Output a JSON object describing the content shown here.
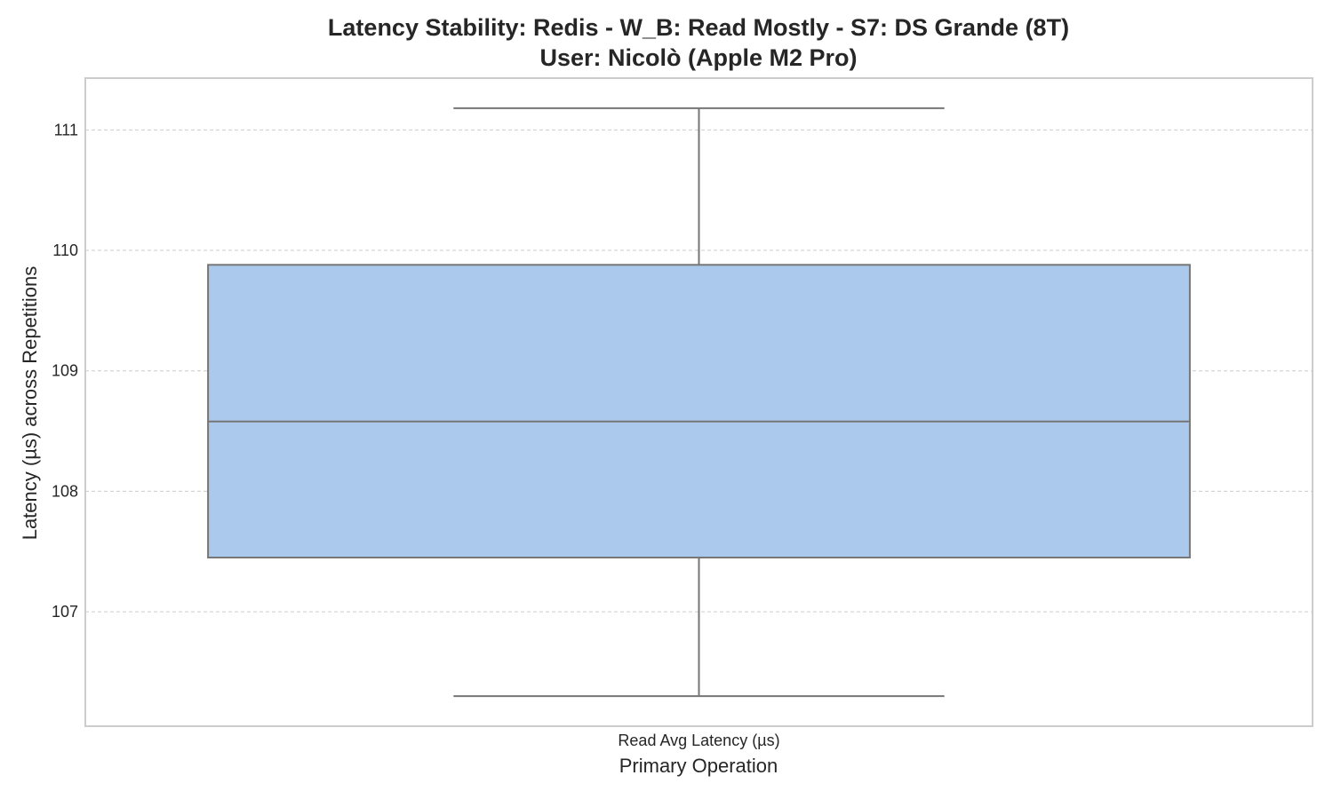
{
  "chart_data": {
    "type": "box",
    "title": "Latency Stability: Redis - W_B: Read Mostly - S7: DS Grande (8T)",
    "subtitle": "User: Nicolò (Apple M2 Pro)",
    "xlabel": "Primary Operation",
    "ylabel": "Latency (µs) across Repetitions",
    "categories": [
      "Read Avg Latency (µs)"
    ],
    "boxes": [
      {
        "category": "Read Avg Latency (µs)",
        "whisker_low": 106.3,
        "q1": 107.45,
        "median": 108.58,
        "q3": 109.88,
        "whisker_high": 111.18
      }
    ],
    "ylim": [
      106.05,
      111.43
    ],
    "yticks": [
      107,
      108,
      109,
      110,
      111
    ],
    "grid": true,
    "box_color": "#abc9ec",
    "line_color": "#767676"
  }
}
